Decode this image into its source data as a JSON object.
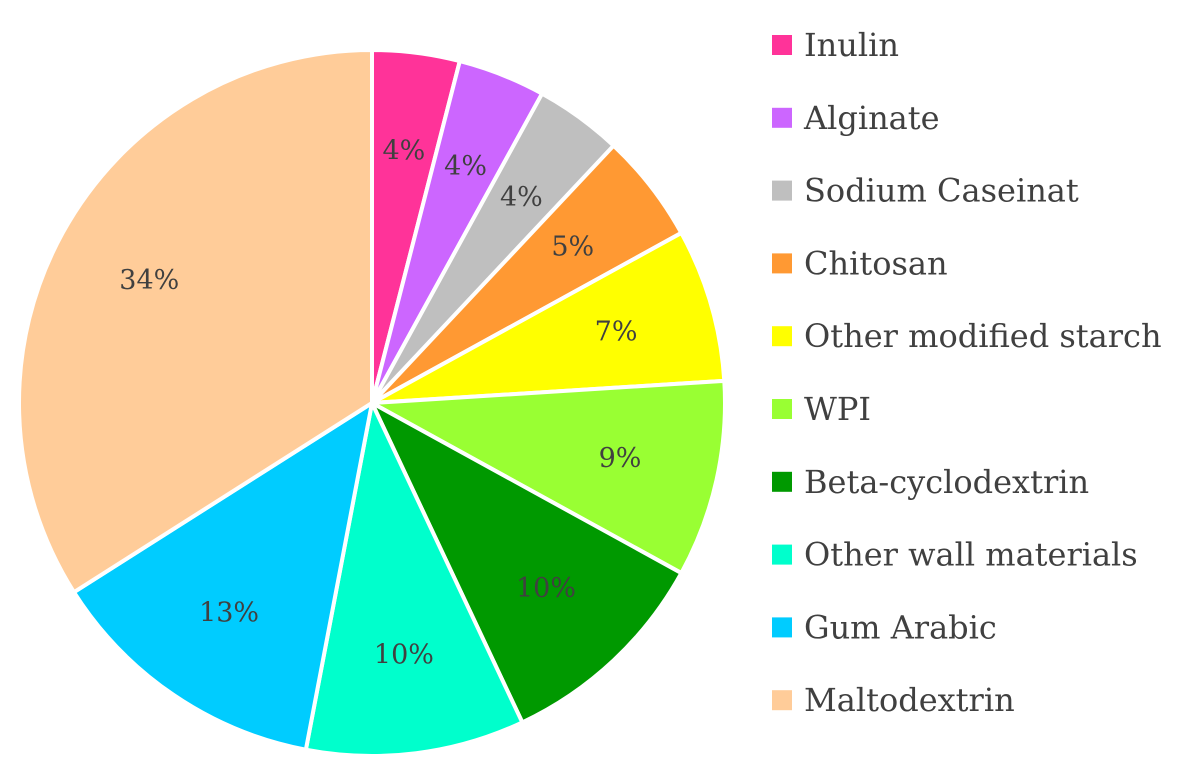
{
  "chart_data": {
    "type": "pie",
    "title": "",
    "start_angle_deg": 0,
    "direction": "clockwise",
    "legend_position": "right",
    "slices": [
      {
        "label": "Inulin",
        "value": 4,
        "value_label": "4%",
        "color": "#FF3399"
      },
      {
        "label": "Alginate",
        "value": 4,
        "value_label": "4%",
        "color": "#CC66FF"
      },
      {
        "label": "Sodium Caseinat",
        "value": 4,
        "value_label": "4%",
        "color": "#BFBFBF"
      },
      {
        "label": "Chitosan",
        "value": 5,
        "value_label": "5%",
        "color": "#FF9933"
      },
      {
        "label": "Other modified starch",
        "value": 7,
        "value_label": "7%",
        "color": "#FFFF00"
      },
      {
        "label": "WPI",
        "value": 9,
        "value_label": "9%",
        "color": "#99FF33"
      },
      {
        "label": "Beta-cyclodextrin",
        "value": 10,
        "value_label": "10%",
        "color": "#009900"
      },
      {
        "label": "Other wall materials",
        "value": 10,
        "value_label": "10%",
        "color": "#00FFCC"
      },
      {
        "label": "Gum Arabic",
        "value": 13,
        "value_label": "13%",
        "color": "#00CCFF"
      },
      {
        "label": "Maltodextrin",
        "value": 34,
        "value_label": "34%",
        "color": "#FFCC99"
      }
    ]
  }
}
